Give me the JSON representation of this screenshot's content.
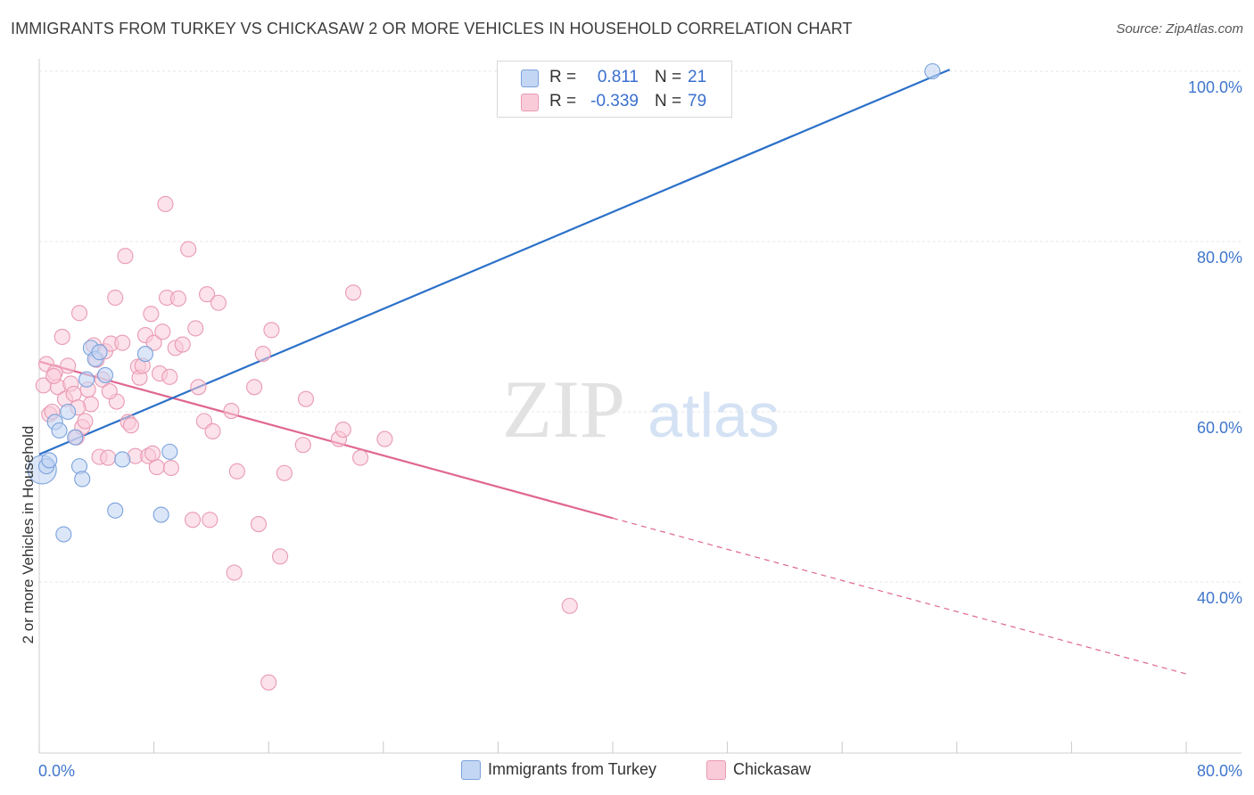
{
  "title": "IMMIGRANTS FROM TURKEY VS CHICKASAW 2 OR MORE VEHICLES IN HOUSEHOLD CORRELATION CHART",
  "source": "Source: ZipAtlas.com",
  "watermark": {
    "zip": "ZIP",
    "atlas": "atlas"
  },
  "legend": {
    "r_label": "R =",
    "n_label": "N =",
    "rows": [
      {
        "name": "Immigrants from Turkey",
        "r": "0.811",
        "n": "21",
        "color": "#a9c6ee"
      },
      {
        "name": "Chickasaw",
        "r": "-0.339",
        "n": "79",
        "color": "#f5b6c9"
      }
    ]
  },
  "colors": {
    "blue_fill": "#c3d6f3",
    "blue_stroke": "#7aa2dc",
    "blue_line": "#2b70c9",
    "pink_fill": "#f9cbd9",
    "pink_stroke": "#e99ab3",
    "pink_line": "#e0668f",
    "axis_text": "#3f76cc"
  },
  "chart_data": {
    "type": "scatter",
    "title": "IMMIGRANTS FROM TURKEY VS CHICKASAW 2 OR MORE VEHICLES IN HOUSEHOLD CORRELATION CHART",
    "xlabel": "",
    "ylabel": "2 or more Vehicles in Household",
    "xlim": [
      0,
      80
    ],
    "ylim": [
      20,
      102
    ],
    "x_tick_labels": [
      "0.0%",
      "80.0%"
    ],
    "y_ticks": [
      40,
      60,
      80,
      100
    ],
    "y_tick_labels": [
      "40.0%",
      "60.0%",
      "80.0%",
      "100.0%"
    ],
    "grid": true,
    "legend_position": "top-center",
    "series": [
      {
        "name": "Immigrants from Turkey",
        "trend": {
          "x": [
            0,
            63.5
          ],
          "y": [
            55.0,
            100.2
          ]
        },
        "points": [
          {
            "x": 0.2,
            "y": 53.2,
            "big": true
          },
          {
            "x": 0.5,
            "y": 53.6
          },
          {
            "x": 0.7,
            "y": 54.3
          },
          {
            "x": 1.1,
            "y": 58.8
          },
          {
            "x": 1.4,
            "y": 57.8
          },
          {
            "x": 1.7,
            "y": 45.6
          },
          {
            "x": 2.0,
            "y": 60.0
          },
          {
            "x": 2.5,
            "y": 57.0
          },
          {
            "x": 2.8,
            "y": 53.6
          },
          {
            "x": 3.0,
            "y": 52.1
          },
          {
            "x": 3.3,
            "y": 63.8
          },
          {
            "x": 3.6,
            "y": 67.5
          },
          {
            "x": 3.9,
            "y": 66.2
          },
          {
            "x": 4.2,
            "y": 67.0
          },
          {
            "x": 4.6,
            "y": 64.3
          },
          {
            "x": 5.3,
            "y": 48.4
          },
          {
            "x": 5.8,
            "y": 54.4
          },
          {
            "x": 7.4,
            "y": 66.8
          },
          {
            "x": 8.5,
            "y": 47.9
          },
          {
            "x": 9.1,
            "y": 55.3
          },
          {
            "x": 62.3,
            "y": 100.0
          }
        ]
      },
      {
        "name": "Chickasaw",
        "trend": {
          "x": [
            0,
            40
          ],
          "y": [
            65.9,
            47.5
          ]
        },
        "trend_dashed": {
          "x": [
            40,
            80
          ],
          "y": [
            47.5,
            29.2
          ]
        },
        "points": [
          {
            "x": 0.3,
            "y": 63.1
          },
          {
            "x": 0.5,
            "y": 65.6
          },
          {
            "x": 0.7,
            "y": 59.7
          },
          {
            "x": 0.9,
            "y": 60.0
          },
          {
            "x": 1.1,
            "y": 64.6
          },
          {
            "x": 1.3,
            "y": 62.9
          },
          {
            "x": 1.6,
            "y": 68.8
          },
          {
            "x": 1.8,
            "y": 61.5
          },
          {
            "x": 2.0,
            "y": 65.4
          },
          {
            "x": 2.2,
            "y": 63.3
          },
          {
            "x": 2.4,
            "y": 62.1
          },
          {
            "x": 2.6,
            "y": 57.0
          },
          {
            "x": 2.8,
            "y": 71.6
          },
          {
            "x": 3.0,
            "y": 58.2
          },
          {
            "x": 3.2,
            "y": 58.9
          },
          {
            "x": 3.4,
            "y": 62.6
          },
          {
            "x": 3.6,
            "y": 60.9
          },
          {
            "x": 3.8,
            "y": 67.8
          },
          {
            "x": 4.0,
            "y": 66.1
          },
          {
            "x": 4.2,
            "y": 54.7
          },
          {
            "x": 4.4,
            "y": 63.8
          },
          {
            "x": 4.6,
            "y": 67.1
          },
          {
            "x": 4.8,
            "y": 54.6
          },
          {
            "x": 5.0,
            "y": 68.0
          },
          {
            "x": 5.3,
            "y": 73.4
          },
          {
            "x": 5.4,
            "y": 61.2
          },
          {
            "x": 5.8,
            "y": 68.1
          },
          {
            "x": 6.0,
            "y": 78.3
          },
          {
            "x": 6.2,
            "y": 58.8
          },
          {
            "x": 6.4,
            "y": 58.4
          },
          {
            "x": 6.7,
            "y": 54.8
          },
          {
            "x": 6.9,
            "y": 65.3
          },
          {
            "x": 7.0,
            "y": 64.0
          },
          {
            "x": 7.2,
            "y": 65.4
          },
          {
            "x": 7.4,
            "y": 69.0
          },
          {
            "x": 7.6,
            "y": 54.8
          },
          {
            "x": 7.8,
            "y": 71.5
          },
          {
            "x": 8.0,
            "y": 68.1
          },
          {
            "x": 8.2,
            "y": 53.5
          },
          {
            "x": 8.4,
            "y": 64.5
          },
          {
            "x": 8.6,
            "y": 69.4
          },
          {
            "x": 8.8,
            "y": 84.4
          },
          {
            "x": 8.9,
            "y": 73.4
          },
          {
            "x": 9.1,
            "y": 64.1
          },
          {
            "x": 9.2,
            "y": 53.4
          },
          {
            "x": 9.5,
            "y": 67.5
          },
          {
            "x": 9.7,
            "y": 73.3
          },
          {
            "x": 10.0,
            "y": 67.9
          },
          {
            "x": 10.4,
            "y": 79.1
          },
          {
            "x": 10.7,
            "y": 47.3
          },
          {
            "x": 10.9,
            "y": 69.8
          },
          {
            "x": 11.1,
            "y": 62.9
          },
          {
            "x": 11.5,
            "y": 58.9
          },
          {
            "x": 11.7,
            "y": 73.8
          },
          {
            "x": 11.9,
            "y": 47.3
          },
          {
            "x": 12.1,
            "y": 57.7
          },
          {
            "x": 12.5,
            "y": 72.8
          },
          {
            "x": 13.4,
            "y": 60.1
          },
          {
            "x": 13.6,
            "y": 41.1
          },
          {
            "x": 13.8,
            "y": 53.0
          },
          {
            "x": 15.0,
            "y": 62.9
          },
          {
            "x": 15.3,
            "y": 46.8
          },
          {
            "x": 15.6,
            "y": 66.8
          },
          {
            "x": 16.0,
            "y": 28.2
          },
          {
            "x": 16.2,
            "y": 69.6
          },
          {
            "x": 16.8,
            "y": 43.0
          },
          {
            "x": 17.1,
            "y": 52.8
          },
          {
            "x": 18.4,
            "y": 56.1
          },
          {
            "x": 18.6,
            "y": 61.5
          },
          {
            "x": 20.9,
            "y": 56.8
          },
          {
            "x": 21.2,
            "y": 57.9
          },
          {
            "x": 21.9,
            "y": 74.0
          },
          {
            "x": 22.4,
            "y": 54.6
          },
          {
            "x": 24.1,
            "y": 56.8
          },
          {
            "x": 37.0,
            "y": 37.2
          },
          {
            "x": 4.9,
            "y": 62.4
          },
          {
            "x": 1.0,
            "y": 64.2
          },
          {
            "x": 2.7,
            "y": 60.5
          },
          {
            "x": 7.9,
            "y": 55.1
          }
        ]
      }
    ]
  }
}
